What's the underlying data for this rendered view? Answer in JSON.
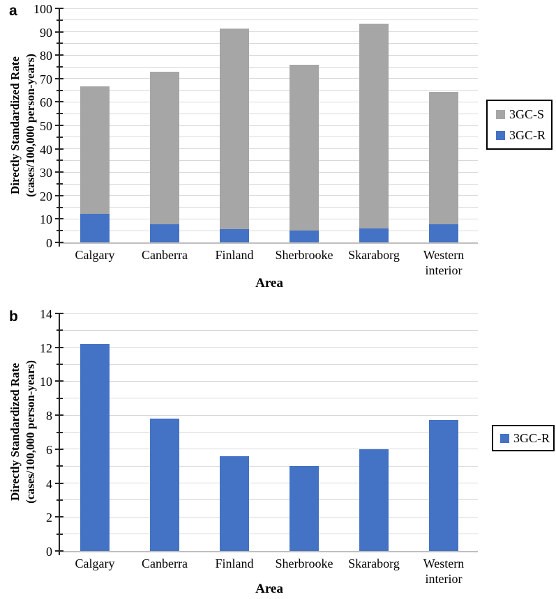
{
  "figure": {
    "background": "#ffffff",
    "colors": {
      "bar_blue": "#4472C4",
      "bar_gray": "#A6A6A6",
      "gridline": "#D9D9D9",
      "axis_line": "#262626",
      "baseline": "#BFBFBF",
      "legend_border": "#000000"
    },
    "panels": [
      {
        "letter": "a",
        "y_axis_title_line1": "Directly Standardized Rate",
        "y_axis_title_line2": "(cases/100,000 person-years)",
        "x_axis_title": "Area",
        "legend_items": [
          {
            "label": "3GC-S",
            "color": "#A6A6A6"
          },
          {
            "label": "3GC-R",
            "color": "#4472C4"
          }
        ]
      },
      {
        "letter": "b",
        "y_axis_title_line1": "Directly Standardized Rate",
        "y_axis_title_line2": "(cases/100,000 person-years)",
        "x_axis_title": "Area",
        "legend_items": [
          {
            "label": "3GC-R",
            "color": "#4472C4"
          }
        ]
      }
    ]
  },
  "chart_data": [
    {
      "type": "bar",
      "stacked": true,
      "title": "",
      "xlabel": "Area",
      "ylabel": "Directly Standardized Rate (cases/100,000 person-years)",
      "categories": [
        "Calgary",
        "Canberra",
        "Finland",
        "Sherbrooke",
        "Skaraborg",
        "Western interior"
      ],
      "series": [
        {
          "name": "3GC-R",
          "color": "#4472C4",
          "values": [
            12.2,
            7.8,
            5.6,
            5.0,
            6.0,
            7.7
          ]
        },
        {
          "name": "3GC-S",
          "color": "#A6A6A6",
          "values": [
            54.5,
            65.0,
            85.8,
            70.8,
            87.5,
            56.5
          ]
        }
      ],
      "stack_totals": [
        66.7,
        72.8,
        91.4,
        75.8,
        93.5,
        64.2
      ],
      "ylim": [
        0,
        100
      ],
      "ytick_step": 10,
      "minor_tick_step": 5,
      "grid": true,
      "legend_position": "right"
    },
    {
      "type": "bar",
      "stacked": false,
      "title": "",
      "xlabel": "Area",
      "ylabel": "Directly Standardized Rate (cases/100,000 person-years)",
      "categories": [
        "Calgary",
        "Canberra",
        "Finland",
        "Sherbrooke",
        "Skaraborg",
        "Western interior"
      ],
      "series": [
        {
          "name": "3GC-R",
          "color": "#4472C4",
          "values": [
            12.2,
            7.8,
            5.6,
            5.0,
            6.0,
            7.7
          ]
        }
      ],
      "ylim": [
        0,
        14
      ],
      "ytick_step": 2,
      "minor_tick_step": 1,
      "grid": true,
      "legend_position": "right"
    }
  ]
}
